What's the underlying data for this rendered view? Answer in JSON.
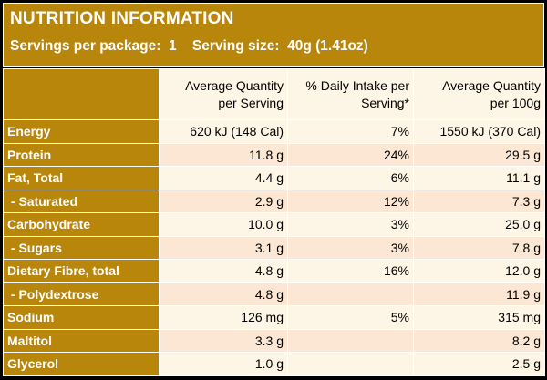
{
  "header": {
    "title": "NUTRITION INFORMATION",
    "servings_line": "Servings per package:  1    Serving size:  40g (1.41oz)"
  },
  "columns": [
    {
      "line1": "Average Quantity",
      "line2": "per Serving"
    },
    {
      "line1": "% Daily Intake per",
      "line2": "Serving*"
    },
    {
      "line1": "Average Quantity",
      "line2": "per 100g"
    }
  ],
  "rows": [
    {
      "name": "Energy",
      "per_serving": "620 kJ (148 Cal)",
      "daily_intake": "7%",
      "per_100g": "1550 kJ (370 Cal)"
    },
    {
      "name": "Protein",
      "per_serving": "11.8 g",
      "daily_intake": "24%",
      "per_100g": "29.5 g"
    },
    {
      "name": "Fat, Total",
      "per_serving": "4.4 g",
      "daily_intake": "6%",
      "per_100g": "11.1 g"
    },
    {
      "name": " - Saturated",
      "per_serving": "2.9 g",
      "daily_intake": "12%",
      "per_100g": "7.3 g"
    },
    {
      "name": "Carbohydrate",
      "per_serving": "10.0 g",
      "daily_intake": "3%",
      "per_100g": "25.0 g"
    },
    {
      "name": " - Sugars",
      "per_serving": "3.1 g",
      "daily_intake": "3%",
      "per_100g": "7.8 g"
    },
    {
      "name": "Dietary Fibre, total",
      "per_serving": "4.8 g",
      "daily_intake": "16%",
      "per_100g": "12.0 g"
    },
    {
      "name": " - Polydextrose",
      "per_serving": "4.8 g",
      "daily_intake": "",
      "per_100g": "11.9 g"
    },
    {
      "name": "Sodium",
      "per_serving": "126 mg",
      "daily_intake": "5%",
      "per_100g": "315 mg"
    },
    {
      "name": "Maltitol",
      "per_serving": "3.3 g",
      "daily_intake": "",
      "per_100g": "8.2 g"
    },
    {
      "name": "Glycerol",
      "per_serving": "1.0 g",
      "daily_intake": "",
      "per_100g": "2.5 g"
    }
  ],
  "colors": {
    "header_gold": "#b8860b",
    "cell_light": "#fdf5e6",
    "cell_alt": "#fbe7d4"
  }
}
